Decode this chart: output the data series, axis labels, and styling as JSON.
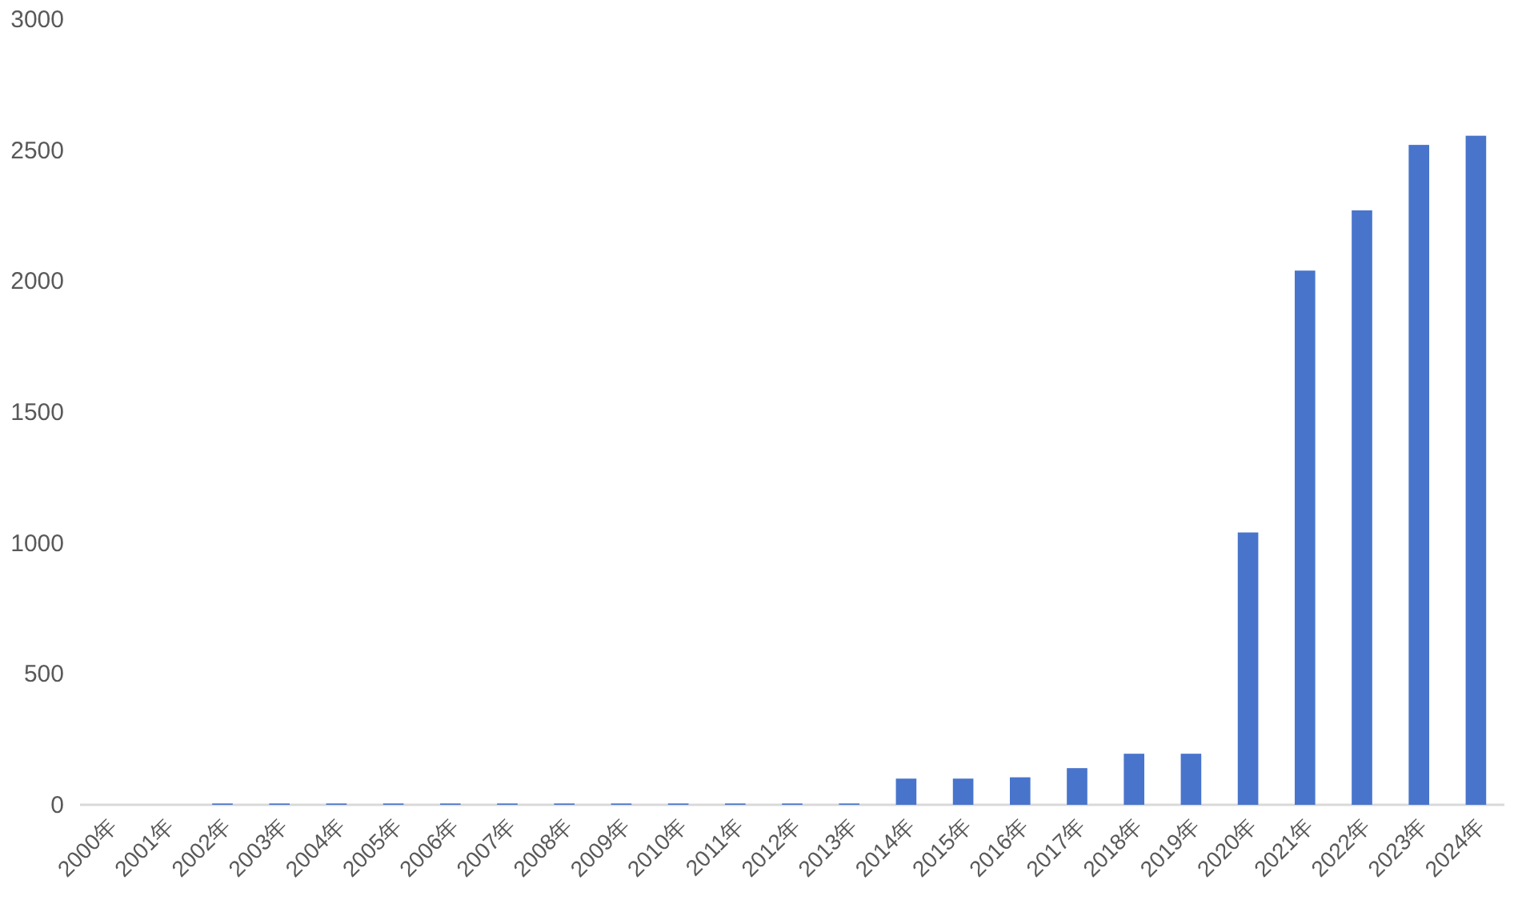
{
  "chart_data": {
    "type": "bar",
    "categories": [
      "2000年",
      "2001年",
      "2002年",
      "2003年",
      "2004年",
      "2005年",
      "2006年",
      "2007年",
      "2008年",
      "2009年",
      "2010年",
      "2011年",
      "2012年",
      "2013年",
      "2014年",
      "2015年",
      "2016年",
      "2017年",
      "2018年",
      "2019年",
      "2020年",
      "2021年",
      "2022年",
      "2023年",
      "2024年"
    ],
    "values": [
      0,
      0,
      5,
      5,
      5,
      5,
      5,
      5,
      5,
      5,
      5,
      5,
      5,
      5,
      100,
      100,
      105,
      140,
      195,
      195,
      1040,
      2040,
      2270,
      2520,
      2555
    ],
    "color": "#4874cb",
    "ylim": [
      0,
      3000
    ],
    "yticks": [
      0,
      500,
      1000,
      1500,
      2000,
      2500,
      3000
    ],
    "grid": false
  }
}
